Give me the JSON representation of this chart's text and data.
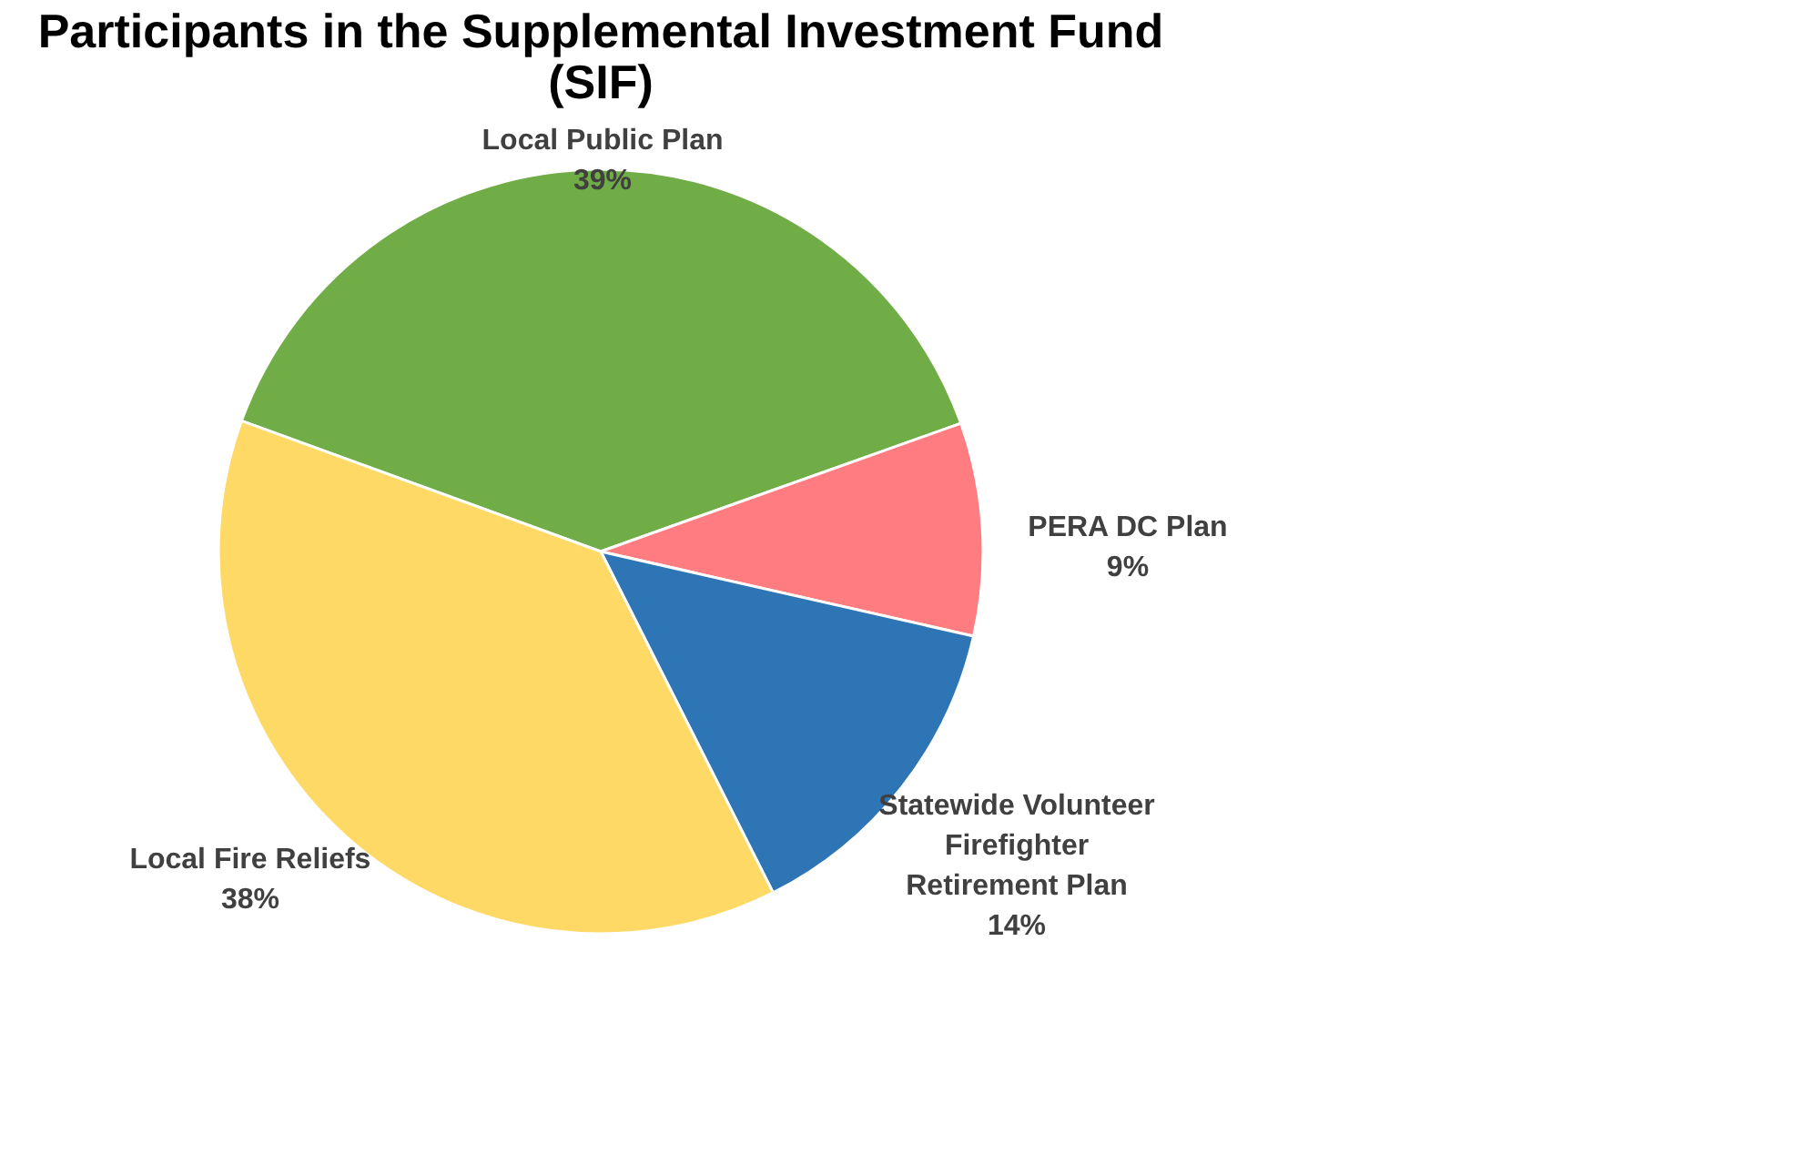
{
  "chart_data": {
    "type": "pie",
    "title": "Participants in the Supplemental Investment Fund (SIF)",
    "categories": [
      "Local Public Plan",
      "PERA DC Plan",
      "Statewide Volunteer Firefighter Retirement Plan",
      "Local Fire Reliefs"
    ],
    "values": [
      39,
      9,
      14,
      38
    ],
    "value_labels": [
      "39%",
      "9%",
      "14%",
      "38%"
    ],
    "colors": [
      "#70ad47",
      "#ff7c80",
      "#2e75b6",
      "#ffd966"
    ],
    "legend": false
  }
}
